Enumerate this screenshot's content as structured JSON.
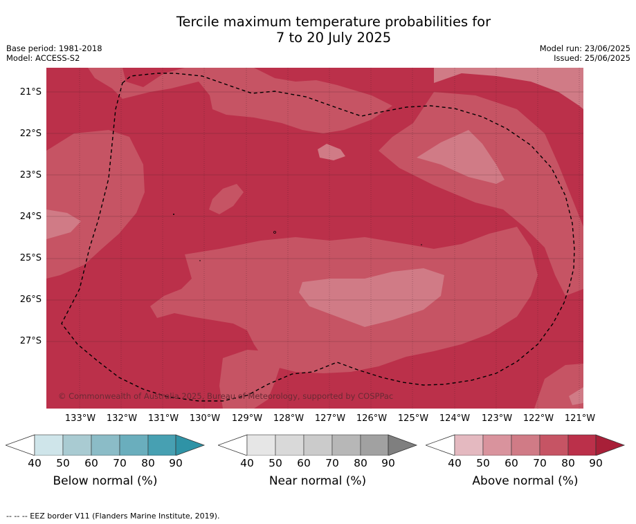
{
  "title_line1": "Tercile maximum temperature probabilities for",
  "title_line2": "7 to 20 July 2025",
  "base_period": "Base period: 1981-2018",
  "model": "Model: ACCESS-S2",
  "model_run": "Model run: 23/06/2025",
  "issued": "Issued: 25/06/2025",
  "copyright": "© Commonwealth of Australia 2025, Bureau of Meteorology, supported by COSPPac",
  "lat_labels": [
    "21°S",
    "22°S",
    "23°S",
    "24°S",
    "25°S",
    "26°S",
    "27°S"
  ],
  "lon_labels": [
    "133°W",
    "132°W",
    "131°W",
    "130°W",
    "129°W",
    "128°W",
    "127°W",
    "126°W",
    "125°W",
    "124°W",
    "123°W",
    "122°W",
    "121°W"
  ],
  "legends": [
    {
      "title": "Below normal (%)",
      "ticks": [
        "40",
        "50",
        "60",
        "70",
        "80",
        "90"
      ],
      "colors": [
        "#cfe5ea",
        "#a9cbd2",
        "#8bbcc7",
        "#6aaebd",
        "#47a0b2",
        "#2f93a6"
      ]
    },
    {
      "title": "Near normal (%)",
      "ticks": [
        "40",
        "50",
        "60",
        "70",
        "80",
        "90"
      ],
      "colors": [
        "#e6e6e6",
        "#d9d9d9",
        "#cbcbcb",
        "#b7b7b7",
        "#a1a1a1",
        "#7f7f7f"
      ]
    },
    {
      "title": "Above normal (%)",
      "ticks": [
        "40",
        "50",
        "60",
        "70",
        "80",
        "90"
      ],
      "colors": [
        "#e4b9c0",
        "#d9939d",
        "#d07b86",
        "#c65464",
        "#bb304a",
        "#a81f38"
      ]
    }
  ],
  "footnote": "--  --  -- EEZ border V11 (Flanders Marine Institute, 2019).",
  "colors": {
    "above_80": "#bb304a",
    "above_70": "#c65464",
    "above_60": "#d07b86",
    "near_70": "#b7b7b7"
  }
}
